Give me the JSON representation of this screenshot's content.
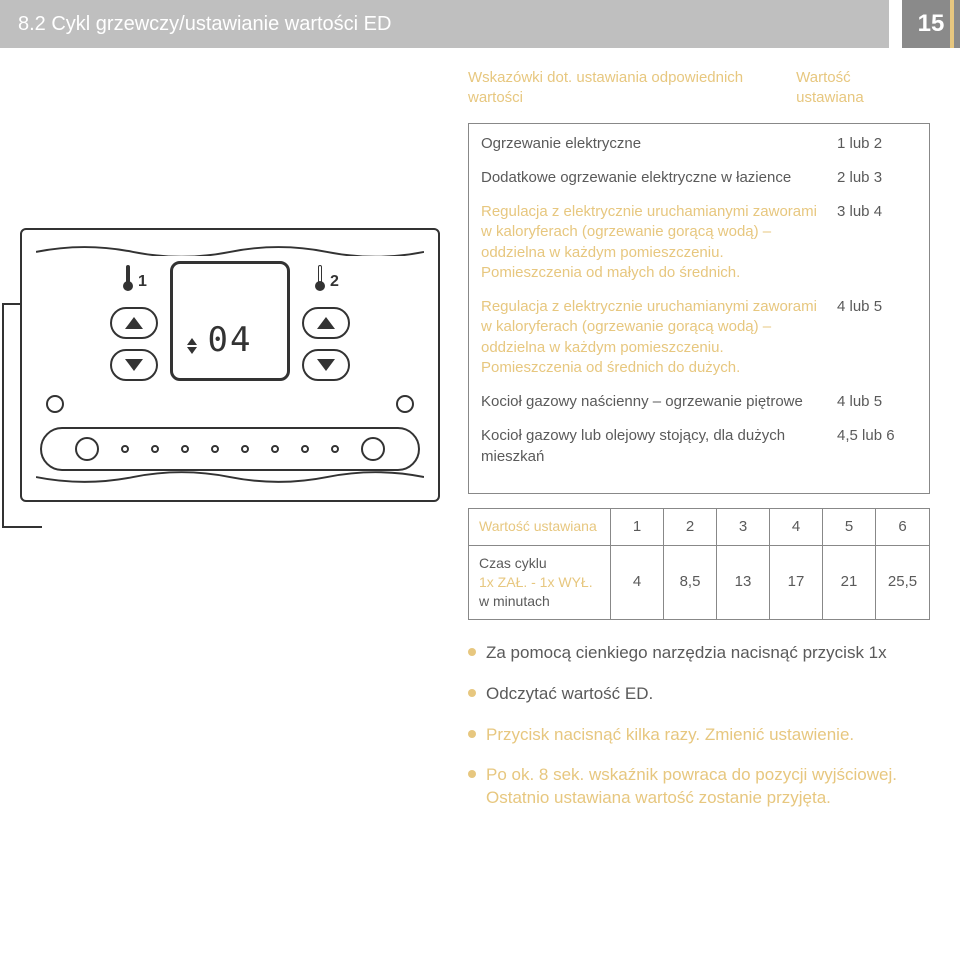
{
  "header": {
    "title": "8.2 Cykl grzewczy/ustawianie wartości ED",
    "page_number": "15"
  },
  "colors": {
    "accent": "#e7c77f",
    "header_bg": "#bfbfbf",
    "header_num_bg": "#8a8a8a",
    "text": "#5a5a5a",
    "border": "#888888"
  },
  "device": {
    "display_value": "04",
    "thermo_left": "1",
    "thermo_right": "2"
  },
  "intro": {
    "left": "Wskazówki dot. ustawiania odpowiednich wartości",
    "right": "Wartość ustawiana"
  },
  "settings_box": {
    "rows": [
      {
        "label": "Ogrzewanie elektryczne",
        "value": "1 lub 2",
        "gold": false
      },
      {
        "label": "Dodatkowe ogrzewanie elektryczne w łazience",
        "value": "2 lub 3",
        "gold": false
      },
      {
        "label": "Regulacja z elektrycznie uruchamianymi zaworami w kaloryferach (ogrzewanie gorącą wodą) – oddzielna w każdym pomieszczeniu. Pomieszczenia od małych do średnich.",
        "value": "3 lub 4",
        "gold": true
      },
      {
        "label": "Regulacja z elektrycznie uruchamianymi zaworami w kaloryferach (ogrzewanie gorącą wodą) – oddzielna w każdym pomieszczeniu. Pomieszczenia od średnich do dużych.",
        "value": "4 lub 5",
        "gold": true
      },
      {
        "label": "Kocioł gazowy naścienny – ogrzewanie piętrowe",
        "value": "4 lub 5",
        "gold": false
      },
      {
        "label": "Kocioł gazowy lub olejowy stojący, dla dużych mieszkań",
        "value": "4,5 lub 6",
        "gold": false
      }
    ]
  },
  "table": {
    "row1_label": "Wartość ustawiana",
    "row1_cells": [
      "1",
      "2",
      "3",
      "4",
      "5",
      "6"
    ],
    "row2_label_line1": "Czas cyklu",
    "row2_label_line2": "1x ZAŁ. - 1x WYŁ.",
    "row2_label_line3": "w minutach",
    "row2_cells": [
      "4",
      "8,5",
      "13",
      "17",
      "21",
      "25,5"
    ]
  },
  "steps": [
    {
      "text": "Za pomocą cienkiego narzędzia nacisnąć przycisk 1x",
      "gold": false
    },
    {
      "text": "Odczytać wartość ED.",
      "gold": false
    },
    {
      "text": "Przycisk nacisnąć kilka razy. Zmienić ustawienie.",
      "gold": true
    },
    {
      "text": "Po ok. 8 sek. wskaźnik powraca do pozycji wyjściowej. Ostatnio ustawiana wartość zostanie przyjęta.",
      "gold": true
    }
  ]
}
